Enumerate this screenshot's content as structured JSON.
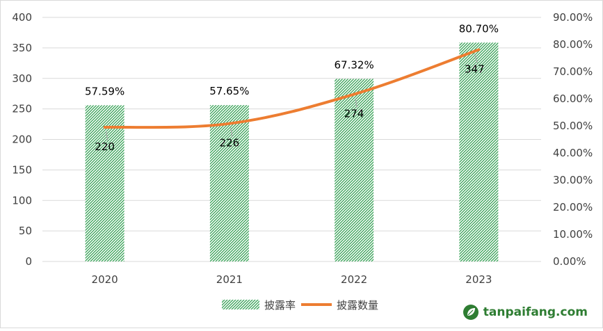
{
  "chart_data": {
    "type": "bar+line",
    "categories": [
      "2020",
      "2021",
      "2022",
      "2023"
    ],
    "series": [
      {
        "name": "披露率",
        "type": "bar",
        "axis": "right",
        "values": [
          57.59,
          57.65,
          67.32,
          80.7
        ],
        "labels": [
          "57.59%",
          "57.65%",
          "67.32%",
          "80.70%"
        ]
      },
      {
        "name": "披露数量",
        "type": "line",
        "axis": "left",
        "values": [
          220,
          226,
          274,
          347
        ],
        "labels": [
          "220",
          "226",
          "274",
          "347"
        ]
      }
    ],
    "y_left": {
      "ylim": [
        0,
        400
      ],
      "ticks": [
        "0",
        "50",
        "100",
        "150",
        "200",
        "250",
        "300",
        "350",
        "400"
      ]
    },
    "y_right": {
      "ylim": [
        0,
        90
      ],
      "ticks": [
        "0.00%",
        "10.00%",
        "20.00%",
        "30.00%",
        "40.00%",
        "50.00%",
        "60.00%",
        "70.00%",
        "80.00%",
        "90.00%"
      ]
    },
    "grid": true,
    "legend_position": "bottom",
    "colors": {
      "bar": "#2e9e4f",
      "line": "#ed7d31",
      "grid": "#d9d9d9",
      "axis_text": "#404040"
    }
  },
  "watermark": {
    "text": "tanpaifang.com",
    "icon": "leaf-logo-icon"
  }
}
